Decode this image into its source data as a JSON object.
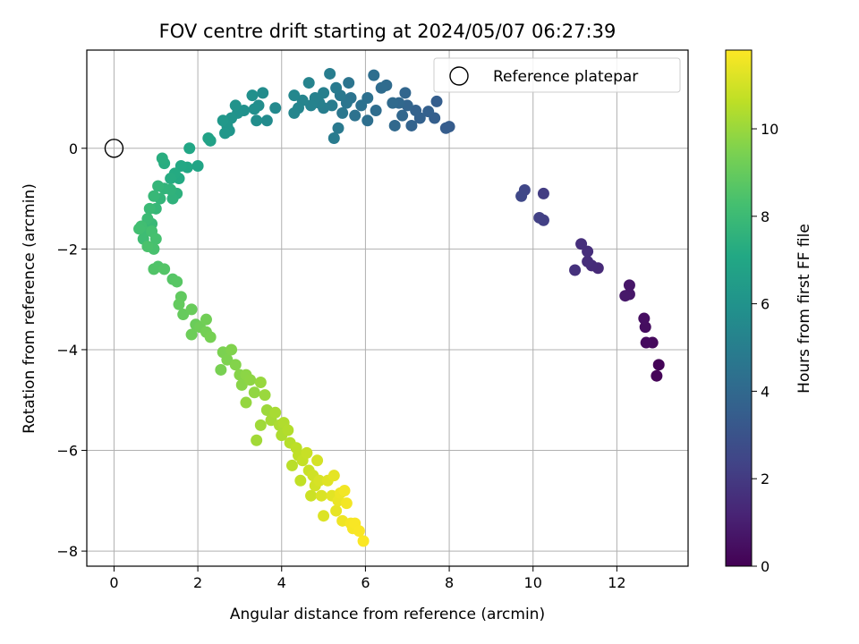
{
  "chart_data": {
    "type": "scatter",
    "title": "FOV centre drift starting at 2024/05/07 06:27:39",
    "xlabel": "Angular distance from reference (arcmin)",
    "ylabel": "Rotation from reference (arcmin)",
    "xlim": [
      -0.65,
      13.7
    ],
    "ylim": [
      -8.3,
      1.95
    ],
    "x_ticks": [
      0,
      2,
      4,
      6,
      8,
      10,
      12
    ],
    "y_ticks": [
      -8,
      -6,
      -4,
      -2,
      0
    ],
    "grid": true,
    "legend": {
      "position": "top-right",
      "entries": [
        "Reference platepar"
      ]
    },
    "reference_point": {
      "x": 0,
      "y": 0,
      "label": "Reference platepar"
    },
    "colorbar": {
      "label": "Hours from first FF file",
      "colormap": "viridis",
      "range": [
        0,
        11.8
      ],
      "ticks": [
        0,
        2,
        4,
        6,
        8,
        10
      ]
    },
    "points": [
      [
        13.0,
        -4.3,
        0.1
      ],
      [
        12.95,
        -4.52,
        0.15
      ],
      [
        12.85,
        -3.86,
        0.3
      ],
      [
        12.7,
        -3.86,
        0.35
      ],
      [
        12.68,
        -3.55,
        0.4
      ],
      [
        12.65,
        -3.38,
        0.45
      ],
      [
        12.3,
        -2.72,
        0.7
      ],
      [
        12.3,
        -2.9,
        0.75
      ],
      [
        12.2,
        -2.93,
        0.8
      ],
      [
        11.55,
        -2.38,
        1.4
      ],
      [
        11.4,
        -2.33,
        1.45
      ],
      [
        11.3,
        -2.25,
        1.5
      ],
      [
        11.3,
        -2.05,
        1.55
      ],
      [
        11.15,
        -1.9,
        1.6
      ],
      [
        11.0,
        -2.42,
        1.65
      ],
      [
        10.25,
        -0.9,
        2.1
      ],
      [
        10.25,
        -1.43,
        2.2
      ],
      [
        10.15,
        -1.38,
        2.25
      ],
      [
        9.8,
        -0.83,
        2.5
      ],
      [
        9.72,
        -0.95,
        2.55
      ],
      [
        8.0,
        0.43,
        3.4
      ],
      [
        7.92,
        0.4,
        3.45
      ],
      [
        7.7,
        0.93,
        3.5
      ],
      [
        7.65,
        0.6,
        3.55
      ],
      [
        7.5,
        0.73,
        3.6
      ],
      [
        7.3,
        0.6,
        3.65
      ],
      [
        7.2,
        0.75,
        3.7
      ],
      [
        7.1,
        0.45,
        3.75
      ],
      [
        7.0,
        0.85,
        3.8
      ],
      [
        6.95,
        1.1,
        3.85
      ],
      [
        6.88,
        0.65,
        3.9
      ],
      [
        6.8,
        0.9,
        3.95
      ],
      [
        6.7,
        0.45,
        4.0
      ],
      [
        6.65,
        0.9,
        4.05
      ],
      [
        6.5,
        1.25,
        4.1
      ],
      [
        6.38,
        1.2,
        4.15
      ],
      [
        6.25,
        0.75,
        4.2
      ],
      [
        6.2,
        1.45,
        4.25
      ],
      [
        6.05,
        0.55,
        4.3
      ],
      [
        6.05,
        1.0,
        4.35
      ],
      [
        5.9,
        0.85,
        4.4
      ],
      [
        5.75,
        0.65,
        4.45
      ],
      [
        5.65,
        1.0,
        4.5
      ],
      [
        5.6,
        1.3,
        4.55
      ],
      [
        5.55,
        0.9,
        4.6
      ],
      [
        5.45,
        0.7,
        4.65
      ],
      [
        5.4,
        1.05,
        4.7
      ],
      [
        5.35,
        0.4,
        4.75
      ],
      [
        5.3,
        1.2,
        4.8
      ],
      [
        5.25,
        0.2,
        4.85
      ],
      [
        5.2,
        0.85,
        4.9
      ],
      [
        5.15,
        1.48,
        4.95
      ],
      [
        5.0,
        0.8,
        5.0
      ],
      [
        5.0,
        1.1,
        5.05
      ],
      [
        4.9,
        0.9,
        5.1
      ],
      [
        4.8,
        1.0,
        5.15
      ],
      [
        4.7,
        0.85,
        5.2
      ],
      [
        4.65,
        1.3,
        5.25
      ],
      [
        4.5,
        0.95,
        5.3
      ],
      [
        4.4,
        0.8,
        5.35
      ],
      [
        4.3,
        0.7,
        5.4
      ],
      [
        4.3,
        1.05,
        5.45
      ],
      [
        3.85,
        0.8,
        5.5
      ],
      [
        3.65,
        0.55,
        5.6
      ],
      [
        3.55,
        1.1,
        5.65
      ],
      [
        3.45,
        0.85,
        5.7
      ],
      [
        3.4,
        0.55,
        5.75
      ],
      [
        3.35,
        0.78,
        5.8
      ],
      [
        3.3,
        1.05,
        5.85
      ],
      [
        3.1,
        0.75,
        5.9
      ],
      [
        2.95,
        0.7,
        5.95
      ],
      [
        2.9,
        0.85,
        6.0
      ],
      [
        2.8,
        0.6,
        6.05
      ],
      [
        2.75,
        0.35,
        6.1
      ],
      [
        2.7,
        0.45,
        6.15
      ],
      [
        2.65,
        0.3,
        6.2
      ],
      [
        2.6,
        0.55,
        6.25
      ],
      [
        2.3,
        0.15,
        6.7
      ],
      [
        2.25,
        0.2,
        6.75
      ],
      [
        2.0,
        -0.35,
        6.9
      ],
      [
        1.8,
        0.0,
        7.0
      ],
      [
        1.75,
        -0.38,
        7.05
      ],
      [
        1.6,
        -0.35,
        7.1
      ],
      [
        1.55,
        -0.6,
        7.15
      ],
      [
        1.45,
        -0.5,
        7.2
      ],
      [
        1.35,
        -0.6,
        7.25
      ],
      [
        1.2,
        -0.3,
        7.3
      ],
      [
        1.15,
        -0.2,
        7.35
      ],
      [
        1.5,
        -0.9,
        7.5
      ],
      [
        1.4,
        -1.0,
        7.55
      ],
      [
        1.35,
        -0.82,
        7.6
      ],
      [
        1.2,
        -0.8,
        7.65
      ],
      [
        1.1,
        -1.0,
        7.7
      ],
      [
        1.05,
        -0.75,
        7.75
      ],
      [
        1.0,
        -1.2,
        7.8
      ],
      [
        0.95,
        -0.95,
        7.85
      ],
      [
        0.9,
        -1.5,
        7.9
      ],
      [
        0.85,
        -1.2,
        7.95
      ],
      [
        0.8,
        -1.4,
        8.0
      ],
      [
        0.75,
        -1.65,
        8.05
      ],
      [
        0.7,
        -1.8,
        8.1
      ],
      [
        0.65,
        -1.55,
        8.15
      ],
      [
        0.6,
        -1.6,
        8.2
      ],
      [
        0.9,
        -1.65,
        8.25
      ],
      [
        1.0,
        -1.8,
        8.3
      ],
      [
        0.95,
        -2.0,
        8.35
      ],
      [
        0.8,
        -1.95,
        8.4
      ],
      [
        1.05,
        -2.35,
        8.5
      ],
      [
        0.95,
        -2.4,
        8.55
      ],
      [
        1.2,
        -2.4,
        8.6
      ],
      [
        1.4,
        -2.6,
        8.65
      ],
      [
        1.5,
        -2.65,
        8.7
      ],
      [
        1.6,
        -2.95,
        8.9
      ],
      [
        1.55,
        -3.1,
        8.95
      ],
      [
        1.65,
        -3.3,
        9.0
      ],
      [
        1.85,
        -3.2,
        9.05
      ],
      [
        1.95,
        -3.5,
        9.1
      ],
      [
        1.85,
        -3.7,
        9.15
      ],
      [
        2.05,
        -3.55,
        9.2
      ],
      [
        2.2,
        -3.4,
        9.25
      ],
      [
        2.2,
        -3.65,
        9.3
      ],
      [
        2.3,
        -3.75,
        9.35
      ],
      [
        2.55,
        -4.4,
        9.4
      ],
      [
        2.6,
        -4.05,
        9.45
      ],
      [
        2.7,
        -4.2,
        9.5
      ],
      [
        2.8,
        -4.0,
        9.55
      ],
      [
        2.9,
        -4.3,
        9.6
      ],
      [
        3.0,
        -4.5,
        9.65
      ],
      [
        3.05,
        -4.7,
        9.7
      ],
      [
        3.15,
        -4.5,
        9.75
      ],
      [
        3.25,
        -4.6,
        9.8
      ],
      [
        3.35,
        -4.85,
        9.85
      ],
      [
        3.15,
        -5.05,
        9.9
      ],
      [
        3.5,
        -4.65,
        9.95
      ],
      [
        3.6,
        -4.9,
        10.0
      ],
      [
        3.65,
        -5.2,
        10.05
      ],
      [
        3.5,
        -5.5,
        10.1
      ],
      [
        3.4,
        -5.8,
        10.15
      ],
      [
        3.75,
        -5.4,
        10.2
      ],
      [
        3.85,
        -5.25,
        10.25
      ],
      [
        3.95,
        -5.5,
        10.3
      ],
      [
        4.0,
        -5.7,
        10.35
      ],
      [
        4.05,
        -5.45,
        10.4
      ],
      [
        4.15,
        -5.6,
        10.45
      ],
      [
        4.2,
        -5.85,
        10.5
      ],
      [
        4.25,
        -6.3,
        10.55
      ],
      [
        4.35,
        -5.95,
        10.6
      ],
      [
        4.4,
        -6.1,
        10.65
      ],
      [
        4.45,
        -6.6,
        10.7
      ],
      [
        4.5,
        -6.2,
        10.75
      ],
      [
        4.6,
        -6.05,
        10.8
      ],
      [
        4.65,
        -6.4,
        10.85
      ],
      [
        4.7,
        -6.9,
        10.9
      ],
      [
        4.75,
        -6.5,
        10.95
      ],
      [
        4.8,
        -6.7,
        11.0
      ],
      [
        4.85,
        -6.2,
        11.05
      ],
      [
        4.9,
        -6.6,
        11.1
      ],
      [
        4.95,
        -6.9,
        11.15
      ],
      [
        5.0,
        -7.3,
        11.2
      ],
      [
        5.1,
        -6.6,
        11.25
      ],
      [
        5.2,
        -6.9,
        11.3
      ],
      [
        5.25,
        -6.5,
        11.35
      ],
      [
        5.3,
        -7.2,
        11.4
      ],
      [
        5.35,
        -7.0,
        11.45
      ],
      [
        5.4,
        -6.85,
        11.5
      ],
      [
        5.45,
        -7.4,
        11.55
      ],
      [
        5.5,
        -6.8,
        11.6
      ],
      [
        5.55,
        -7.05,
        11.62
      ],
      [
        5.65,
        -7.45,
        11.65
      ],
      [
        5.7,
        -7.55,
        11.68
      ],
      [
        5.75,
        -7.45,
        11.7
      ],
      [
        5.85,
        -7.6,
        11.72
      ],
      [
        5.95,
        -7.8,
        11.75
      ]
    ]
  }
}
